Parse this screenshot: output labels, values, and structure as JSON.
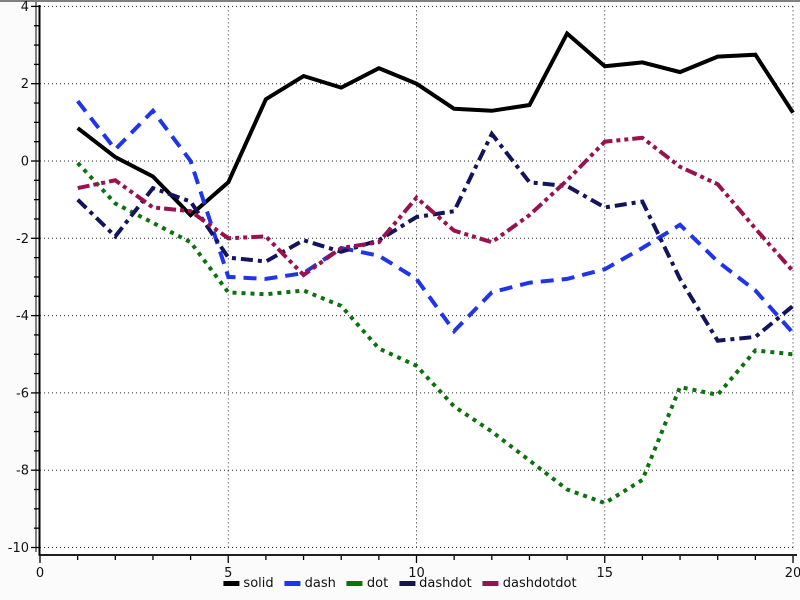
{
  "chart_data": {
    "type": "line",
    "title": "",
    "xlabel": "",
    "ylabel": "",
    "xlim": [
      0,
      20
    ],
    "ylim": [
      -10,
      4
    ],
    "grid": "dotted",
    "legend_position": "bottom-center",
    "x": [
      1,
      2,
      3,
      4,
      5,
      6,
      7,
      8,
      9,
      10,
      11,
      12,
      13,
      14,
      15,
      16,
      17,
      18,
      19,
      20
    ],
    "x_major_ticks": [
      0,
      5,
      10,
      15,
      20
    ],
    "x_minor_step": 1,
    "y_major_ticks": [
      4,
      2,
      0,
      -2,
      -4,
      -6,
      -8,
      -10
    ],
    "y_minor_step": 0.5,
    "x_tick_labels": [
      "0",
      "5",
      "10",
      "15",
      "20"
    ],
    "y_tick_labels": [
      "4",
      "2",
      "0",
      "-2",
      "-4",
      "-6",
      "-8",
      "-10"
    ],
    "series": [
      {
        "name": "solid",
        "line_style": "solid",
        "color": "#000000",
        "values": [
          0.85,
          0.1,
          -0.4,
          -1.4,
          -0.55,
          1.6,
          2.2,
          1.9,
          2.4,
          2.0,
          1.35,
          1.3,
          1.45,
          3.3,
          2.45,
          2.55,
          2.3,
          2.7,
          2.75,
          1.25
        ]
      },
      {
        "name": "dash",
        "line_style": "dash",
        "color": "#2135e8",
        "values": [
          1.55,
          0.3,
          1.3,
          0.0,
          -3.0,
          -3.05,
          -2.9,
          -2.25,
          -2.45,
          -3.05,
          -4.4,
          -3.4,
          -3.15,
          -3.05,
          -2.8,
          -2.25,
          -1.65,
          -2.6,
          -3.35,
          -4.45
        ]
      },
      {
        "name": "dot",
        "line_style": "dot",
        "color": "#0d720d",
        "values": [
          -0.05,
          -1.1,
          -1.6,
          -2.1,
          -3.4,
          -3.45,
          -3.35,
          -3.75,
          -4.85,
          -5.3,
          -6.35,
          -7.0,
          -7.75,
          -8.5,
          -8.85,
          -8.25,
          -5.85,
          -6.05,
          -4.9,
          -5.0
        ]
      },
      {
        "name": "dashdot",
        "line_style": "dashdot",
        "color": "#14145c",
        "values": [
          -1.0,
          -1.95,
          -0.7,
          -1.05,
          -2.5,
          -2.6,
          -2.05,
          -2.35,
          -2.05,
          -1.45,
          -1.3,
          0.7,
          -0.55,
          -0.65,
          -1.2,
          -1.05,
          -3.05,
          -4.65,
          -4.55,
          -3.75
        ]
      },
      {
        "name": "dashdotdot",
        "line_style": "dashdotdot",
        "color": "#97124f",
        "values": [
          -0.7,
          -0.5,
          -1.2,
          -1.3,
          -2.0,
          -1.95,
          -2.95,
          -2.25,
          -2.1,
          -0.95,
          -1.8,
          -2.1,
          -1.4,
          -0.5,
          0.5,
          0.6,
          -0.15,
          -0.6,
          -1.75,
          -2.85
        ]
      }
    ],
    "legend": [
      "solid",
      "dash",
      "dot",
      "dashdot",
      "dashdotdot"
    ]
  },
  "style": {
    "plot_background": "#ffffff",
    "frame_gray": "#808080",
    "axis_color": "#000000",
    "grid_color": "#2a2a2a",
    "tick_label_color": "#111111"
  }
}
